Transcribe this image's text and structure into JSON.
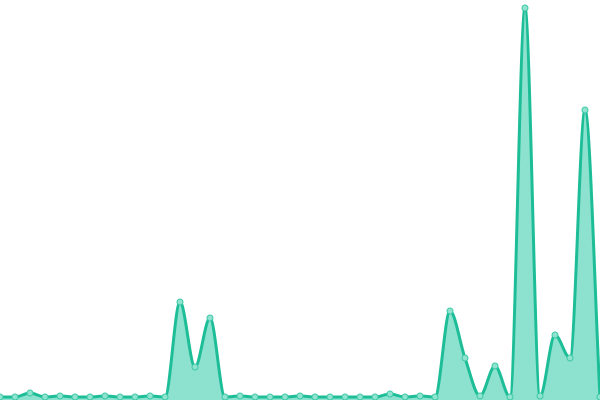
{
  "chart_data": {
    "type": "area",
    "title": "",
    "xlabel": "",
    "ylabel": "",
    "grid": false,
    "legend": "none",
    "smooth": true,
    "x": [
      0,
      1,
      2,
      3,
      4,
      5,
      6,
      7,
      8,
      9,
      10,
      11,
      12,
      13,
      14,
      15,
      16,
      17,
      18,
      19,
      20,
      21,
      22,
      23,
      24,
      25,
      26,
      27,
      28,
      29,
      30,
      31,
      32,
      33,
      34,
      35,
      36,
      37,
      38,
      39,
      40
    ],
    "series": [
      {
        "values": [
          0,
          0,
          4,
          0,
          1,
          0,
          0,
          1,
          0,
          0,
          1,
          0,
          95,
          30,
          79,
          0,
          1,
          0,
          0,
          0,
          1,
          0,
          0,
          0,
          0,
          0,
          3,
          0,
          1,
          0,
          86,
          39,
          1,
          31,
          0,
          389,
          1,
          62,
          39,
          287,
          0
        ]
      }
    ],
    "ylim": [
      0,
      392
    ],
    "colors": {
      "line": "#1dbd97",
      "fill": "#8ce2cf",
      "point_fill": "#8fe3cf",
      "point_stroke": "#3cc9a6"
    }
  }
}
